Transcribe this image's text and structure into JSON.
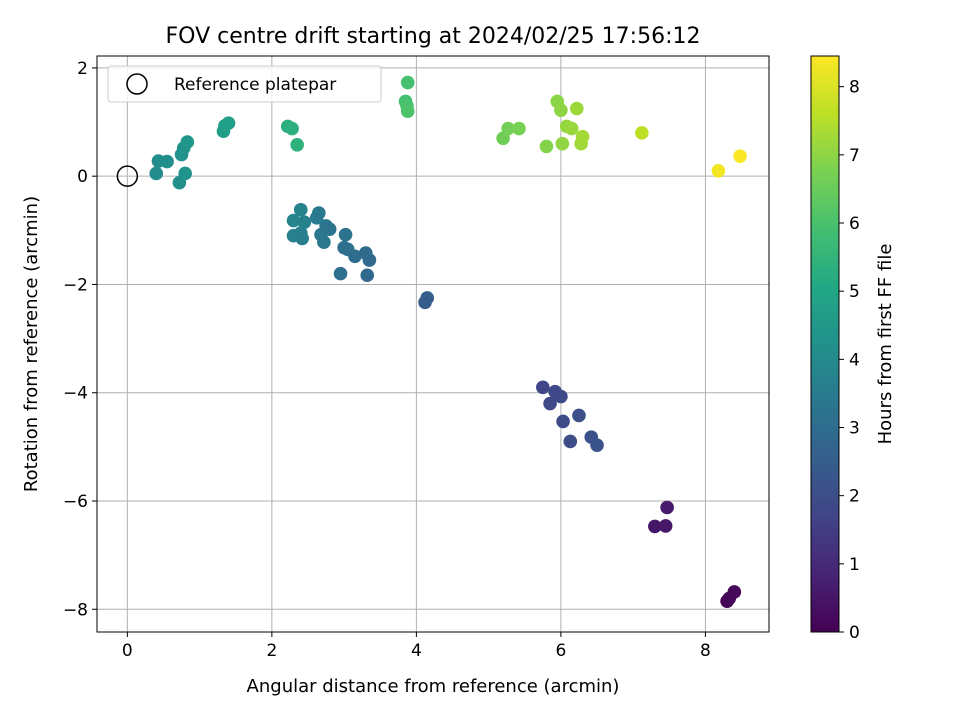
{
  "chart_data": {
    "type": "scatter",
    "title": "FOV centre drift starting at 2024/02/25 17:56:12",
    "xlabel": "Angular distance from reference (arcmin)",
    "ylabel": "Rotation from reference (arcmin)",
    "xlim": [
      -0.42,
      8.88
    ],
    "ylim": [
      -8.42,
      2.22
    ],
    "xticks": [
      0,
      2,
      4,
      6,
      8
    ],
    "xtick_labels": [
      "0",
      "2",
      "4",
      "6",
      "8"
    ],
    "yticks": [
      2,
      0,
      -2,
      -4,
      -6,
      -8
    ],
    "ytick_labels": [
      "2",
      "0",
      "−2",
      "−4",
      "−6",
      "−8"
    ],
    "grid": true,
    "legend": {
      "placement": "top-left",
      "entries": [
        "Reference platepar"
      ]
    },
    "reference_point": {
      "x": 0,
      "y": 0
    },
    "colorbar": {
      "label": "Hours from first FF file",
      "colormap": "viridis",
      "range": [
        0,
        8.45
      ],
      "ticks": [
        0,
        1,
        2,
        3,
        4,
        5,
        6,
        7,
        8
      ],
      "tick_labels": [
        "0",
        "1",
        "2",
        "3",
        "4",
        "5",
        "6",
        "7",
        "8"
      ]
    },
    "points": [
      {
        "x": 8.3,
        "y": -7.85,
        "c": 0.05
      },
      {
        "x": 8.33,
        "y": -7.8,
        "c": 0.12
      },
      {
        "x": 8.4,
        "y": -7.68,
        "c": 0.18
      },
      {
        "x": 7.3,
        "y": -6.47,
        "c": 0.5
      },
      {
        "x": 7.45,
        "y": -6.46,
        "c": 0.55
      },
      {
        "x": 7.47,
        "y": -6.12,
        "c": 0.62
      },
      {
        "x": 5.75,
        "y": -3.9,
        "c": 1.75
      },
      {
        "x": 5.92,
        "y": -3.98,
        "c": 1.8
      },
      {
        "x": 5.85,
        "y": -4.2,
        "c": 1.85
      },
      {
        "x": 6.0,
        "y": -4.07,
        "c": 1.9
      },
      {
        "x": 6.03,
        "y": -4.53,
        "c": 1.95
      },
      {
        "x": 6.13,
        "y": -4.9,
        "c": 2.0
      },
      {
        "x": 6.25,
        "y": -4.42,
        "c": 2.05
      },
      {
        "x": 6.42,
        "y": -4.82,
        "c": 2.1
      },
      {
        "x": 6.5,
        "y": -4.97,
        "c": 2.15
      },
      {
        "x": 4.12,
        "y": -2.33,
        "c": 2.45
      },
      {
        "x": 4.15,
        "y": -2.25,
        "c": 2.5
      },
      {
        "x": 2.3,
        "y": -0.82,
        "c": 3.8
      },
      {
        "x": 2.4,
        "y": -0.62,
        "c": 3.75
      },
      {
        "x": 2.45,
        "y": -0.85,
        "c": 3.7
      },
      {
        "x": 2.3,
        "y": -1.1,
        "c": 3.65
      },
      {
        "x": 2.4,
        "y": -1.05,
        "c": 3.6
      },
      {
        "x": 2.42,
        "y": -1.15,
        "c": 3.55
      },
      {
        "x": 2.62,
        "y": -0.77,
        "c": 3.5
      },
      {
        "x": 2.65,
        "y": -0.68,
        "c": 3.45
      },
      {
        "x": 2.68,
        "y": -1.08,
        "c": 3.4
      },
      {
        "x": 2.72,
        "y": -1.22,
        "c": 3.35
      },
      {
        "x": 2.75,
        "y": -0.92,
        "c": 3.3
      },
      {
        "x": 2.8,
        "y": -0.98,
        "c": 3.25
      },
      {
        "x": 3.02,
        "y": -1.08,
        "c": 3.2
      },
      {
        "x": 3.0,
        "y": -1.32,
        "c": 3.15
      },
      {
        "x": 3.05,
        "y": -1.35,
        "c": 3.1
      },
      {
        "x": 2.95,
        "y": -1.8,
        "c": 3.05
      },
      {
        "x": 3.15,
        "y": -1.48,
        "c": 3.0
      },
      {
        "x": 3.3,
        "y": -1.42,
        "c": 2.95
      },
      {
        "x": 3.35,
        "y": -1.55,
        "c": 2.9
      },
      {
        "x": 3.32,
        "y": -1.83,
        "c": 2.85
      },
      {
        "x": 0.4,
        "y": 0.05,
        "c": 4.05
      },
      {
        "x": 0.43,
        "y": 0.28,
        "c": 4.1
      },
      {
        "x": 0.55,
        "y": 0.27,
        "c": 4.15
      },
      {
        "x": 0.72,
        "y": -0.12,
        "c": 4.2
      },
      {
        "x": 0.75,
        "y": 0.4,
        "c": 4.25
      },
      {
        "x": 0.78,
        "y": 0.52,
        "c": 4.3
      },
      {
        "x": 0.8,
        "y": 0.05,
        "c": 4.35
      },
      {
        "x": 0.83,
        "y": 0.63,
        "c": 4.4
      },
      {
        "x": 1.33,
        "y": 0.83,
        "c": 4.65
      },
      {
        "x": 1.35,
        "y": 0.93,
        "c": 4.7
      },
      {
        "x": 1.4,
        "y": 0.98,
        "c": 4.75
      },
      {
        "x": 2.22,
        "y": 0.92,
        "c": 5.3
      },
      {
        "x": 2.28,
        "y": 0.88,
        "c": 5.35
      },
      {
        "x": 2.35,
        "y": 0.58,
        "c": 5.4
      },
      {
        "x": 3.85,
        "y": 1.38,
        "c": 5.9
      },
      {
        "x": 3.88,
        "y": 1.73,
        "c": 5.95
      },
      {
        "x": 3.87,
        "y": 1.3,
        "c": 6.0
      },
      {
        "x": 3.88,
        "y": 1.2,
        "c": 6.05
      },
      {
        "x": 5.2,
        "y": 0.7,
        "c": 6.6
      },
      {
        "x": 5.27,
        "y": 0.88,
        "c": 6.65
      },
      {
        "x": 5.42,
        "y": 0.88,
        "c": 6.7
      },
      {
        "x": 5.8,
        "y": 0.55,
        "c": 6.9
      },
      {
        "x": 5.95,
        "y": 1.38,
        "c": 6.95
      },
      {
        "x": 6.0,
        "y": 1.22,
        "c": 7.0
      },
      {
        "x": 6.02,
        "y": 0.6,
        "c": 7.05
      },
      {
        "x": 6.08,
        "y": 0.92,
        "c": 7.1
      },
      {
        "x": 6.15,
        "y": 0.88,
        "c": 7.15
      },
      {
        "x": 6.22,
        "y": 1.25,
        "c": 7.2
      },
      {
        "x": 6.28,
        "y": 0.6,
        "c": 7.25
      },
      {
        "x": 6.3,
        "y": 0.73,
        "c": 7.3
      },
      {
        "x": 7.12,
        "y": 0.8,
        "c": 7.6
      },
      {
        "x": 8.18,
        "y": 0.1,
        "c": 8.3
      },
      {
        "x": 8.48,
        "y": 0.37,
        "c": 8.4
      }
    ]
  }
}
